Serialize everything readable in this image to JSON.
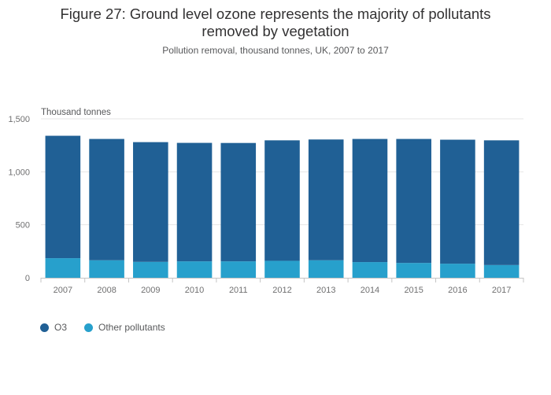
{
  "header": {
    "title_line1": "Figure 27: Ground level ozone represents the majority of pollutants",
    "title_line2": "removed by vegetation",
    "subtitle": "Pollution removal, thousand tonnes, UK, 2007 to 2017"
  },
  "chart_data": {
    "type": "bar",
    "stacked": true,
    "title": "Figure 27: Ground level ozone represents the majority of pollutants removed by vegetation",
    "subtitle": "Pollution removal, thousand tonnes, UK, 2007 to 2017",
    "xlabel": "",
    "ylabel": "Thousand tonnes",
    "ylim": [
      0,
      1500
    ],
    "yticks": [
      0,
      500,
      1000,
      1500
    ],
    "ytick_labels": [
      "0",
      "500",
      "1,000",
      "1,500"
    ],
    "grid": true,
    "legend_position": "bottom-left",
    "categories": [
      "2007",
      "2008",
      "2009",
      "2010",
      "2011",
      "2012",
      "2013",
      "2014",
      "2015",
      "2016",
      "2017"
    ],
    "series": [
      {
        "name": "Other pollutants",
        "color": "#27a0cc",
        "values": [
          185,
          165,
          150,
          155,
          155,
          160,
          165,
          148,
          140,
          133,
          120
        ]
      },
      {
        "name": "O3",
        "color": "#206095",
        "values": [
          1155,
          1145,
          1130,
          1118,
          1117,
          1137,
          1140,
          1162,
          1170,
          1170,
          1177
        ]
      }
    ]
  },
  "legend": {
    "items": [
      {
        "label": "O3",
        "color": "#206095"
      },
      {
        "label": "Other pollutants",
        "color": "#27a0cc"
      }
    ]
  }
}
